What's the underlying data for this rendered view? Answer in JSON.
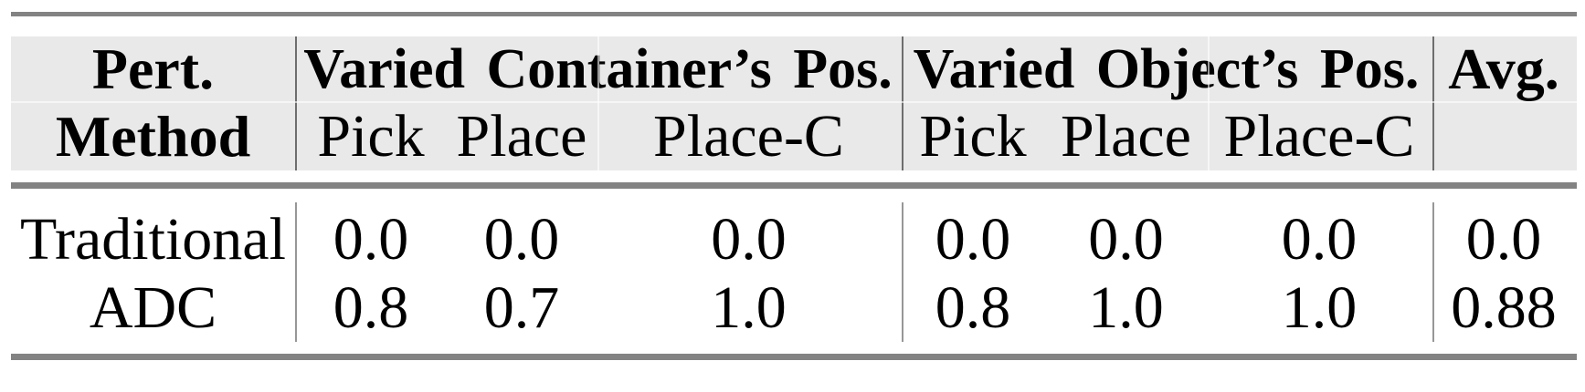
{
  "table": {
    "header": {
      "col1": {
        "line1": "Pert.",
        "line2": "Method"
      },
      "groups": [
        {
          "label": "Varied Container’s Pos.",
          "subcolumns": [
            "Pick",
            "Place",
            "Place-C"
          ]
        },
        {
          "label": "Varied Object’s Pos.",
          "subcolumns": [
            "Pick",
            "Place",
            "Place-C"
          ]
        }
      ],
      "avg_label": "Avg."
    },
    "rows": [
      {
        "method": "Traditional",
        "group1": [
          "0.0",
          "0.0",
          "0.0"
        ],
        "group2": [
          "0.0",
          "0.0",
          "0.0"
        ],
        "avg": "0.0"
      },
      {
        "method": "ADC",
        "group1": [
          "0.8",
          "0.7",
          "1.0"
        ],
        "group2": [
          "0.8",
          "1.0",
          "1.0"
        ],
        "avg": "0.88"
      }
    ],
    "colors": {
      "page_bg": "#ffffff",
      "header_bg": "#e9e9e9",
      "rule": "#838383",
      "divider_header": "#6e6e6e",
      "divider_body": "#979797",
      "text": "#000000"
    }
  },
  "chart_data": {
    "type": "table",
    "column_groups": [
      "Varied Container’s Pos.",
      "Varied Object’s Pos."
    ],
    "columns": [
      "Pert. Method",
      "Pick",
      "Place",
      "Place-C",
      "Pick",
      "Place",
      "Place-C",
      "Avg."
    ],
    "rows": [
      [
        "Traditional",
        0.0,
        0.0,
        0.0,
        0.0,
        0.0,
        0.0,
        0.0
      ],
      [
        "ADC",
        0.8,
        0.7,
        1.0,
        0.8,
        1.0,
        1.0,
        0.88
      ]
    ]
  }
}
